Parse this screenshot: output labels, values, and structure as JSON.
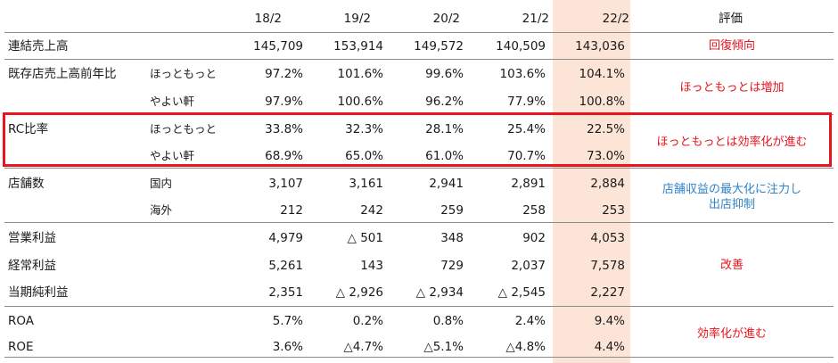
{
  "header": {
    "years": [
      "18/2",
      "19/2",
      "20/2",
      "21/2",
      "22/2"
    ],
    "eval": "評価"
  },
  "rows": [
    {
      "label": "連結売上高",
      "sub": "",
      "values": [
        "145,709",
        "153,914",
        "149,572",
        "140,509",
        "143,036"
      ]
    },
    {
      "label": "既存店売上高前年比",
      "sub": "ほっともっと",
      "values": [
        "97.2%",
        "101.6%",
        "99.6%",
        "103.6%",
        "104.1%"
      ]
    },
    {
      "label": "",
      "sub": "やよい軒",
      "values": [
        "97.9%",
        "100.6%",
        "96.2%",
        "77.9%",
        "100.8%"
      ]
    },
    {
      "label": "RC比率",
      "sub": "ほっともっと",
      "values": [
        "33.8%",
        "32.3%",
        "28.1%",
        "25.4%",
        "22.5%"
      ]
    },
    {
      "label": "",
      "sub": "やよい軒",
      "values": [
        "68.9%",
        "65.0%",
        "61.0%",
        "70.7%",
        "73.0%"
      ]
    },
    {
      "label": "店舗数",
      "sub": "国内",
      "values": [
        "3,107",
        "3,161",
        "2,941",
        "2,891",
        "2,884"
      ]
    },
    {
      "label": "",
      "sub": "海外",
      "values": [
        "212",
        "242",
        "259",
        "258",
        "253"
      ]
    },
    {
      "label": "営業利益",
      "sub": "",
      "values": [
        "4,979",
        "△ 501",
        "348",
        "902",
        "4,053"
      ]
    },
    {
      "label": "経常利益",
      "sub": "",
      "values": [
        "5,261",
        "143",
        "729",
        "2,037",
        "7,578"
      ]
    },
    {
      "label": "当期純利益",
      "sub": "",
      "values": [
        "2,351",
        "△ 2,926",
        "△ 2,934",
        "△ 2,545",
        "2,227"
      ]
    },
    {
      "label": "ROA",
      "sub": "",
      "values": [
        "5.7%",
        "0.2%",
        "0.8%",
        "2.4%",
        "9.4%"
      ]
    },
    {
      "label": "ROE",
      "sub": "",
      "values": [
        "3.6%",
        "△4.7%",
        "△5.1%",
        "△4.8%",
        "4.4%"
      ]
    }
  ],
  "comments": {
    "sales": "回復傾向",
    "existing": "ほっともっとは増加",
    "rc": "ほっともっとは効率化が進む",
    "stores_line1": "店舗収益の最大化に注力し",
    "stores_line2": "出店抑制",
    "profit": "改善",
    "roa": "効率化が進む"
  },
  "colors": {
    "highlight_column": "#fce4d6",
    "red": "#e8141e",
    "blue": "#2f83c8"
  }
}
